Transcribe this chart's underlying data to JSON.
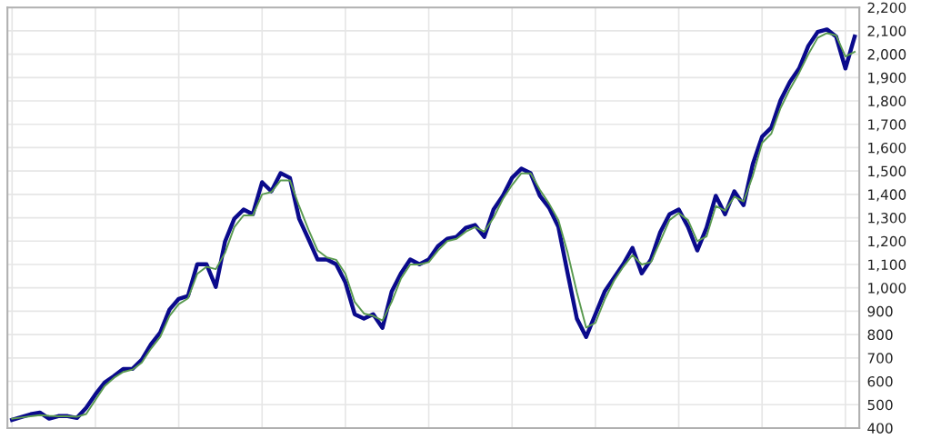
{
  "chart_data": {
    "type": "line",
    "categories": [
      null,
      null,
      null,
      null,
      null,
      null,
      null,
      null,
      null,
      null,
      null,
      null,
      null,
      null,
      null,
      null,
      null,
      null,
      null,
      null,
      null,
      null,
      null,
      null,
      null,
      null,
      null,
      null,
      null,
      null,
      null,
      null,
      null,
      null,
      null,
      null,
      null,
      null,
      null,
      null,
      null,
      null,
      null,
      null,
      null,
      null,
      null,
      null,
      null,
      null,
      null,
      null,
      null,
      null,
      null,
      null,
      null,
      null,
      null,
      null,
      null,
      null,
      null,
      null,
      null,
      null,
      null,
      null,
      null,
      null,
      null,
      null,
      null,
      null,
      null,
      null,
      null,
      null,
      null,
      null,
      null,
      null,
      null,
      null,
      null,
      null,
      null,
      null,
      null,
      null,
      null,
      null
    ],
    "series": [
      {
        "color": "#0a0a8c",
        "values": [
          435,
          447,
          459,
          466,
          440,
          451,
          451,
          443,
          486,
          544,
          595,
          622,
          653,
          653,
          692,
          758,
          809,
          907,
          953,
          965,
          1101,
          1101,
          1004,
          1198,
          1296,
          1335,
          1315,
          1452,
          1413,
          1491,
          1471,
          1296,
          1210,
          1121,
          1121,
          1101,
          1023,
          887,
          868,
          887,
          829,
          984,
          1062,
          1121,
          1101,
          1121,
          1179,
          1210,
          1218,
          1257,
          1269,
          1218,
          1335,
          1394,
          1471,
          1510,
          1491,
          1394,
          1343,
          1261,
          1062,
          868,
          790,
          887,
          984,
          1043,
          1101,
          1171,
          1062,
          1121,
          1238,
          1315,
          1335,
          1261,
          1160,
          1257,
          1394,
          1315,
          1413,
          1354,
          1530,
          1647,
          1686,
          1803,
          1881,
          1939,
          2036,
          2095,
          2106,
          2075,
          1939,
          2075
        ]
      },
      {
        "color": "#5a9a50",
        "values": [
          440,
          445,
          450,
          455,
          452,
          450,
          450,
          448,
          460,
          520,
          580,
          615,
          640,
          650,
          680,
          740,
          790,
          880,
          930,
          955,
          1060,
          1090,
          1080,
          1150,
          1260,
          1310,
          1310,
          1400,
          1410,
          1460,
          1460,
          1350,
          1250,
          1160,
          1130,
          1120,
          1060,
          940,
          890,
          880,
          860,
          940,
          1040,
          1100,
          1100,
          1110,
          1160,
          1200,
          1210,
          1240,
          1260,
          1240,
          1300,
          1380,
          1440,
          1490,
          1490,
          1420,
          1360,
          1290,
          1150,
          980,
          830,
          850,
          950,
          1030,
          1090,
          1140,
          1100,
          1110,
          1200,
          1290,
          1320,
          1290,
          1200,
          1220,
          1350,
          1330,
          1390,
          1370,
          1480,
          1620,
          1660,
          1770,
          1850,
          1920,
          2000,
          2070,
          2090,
          2080,
          1990,
          2010
        ]
      }
    ],
    "ylim": [
      400,
      2200
    ],
    "yticks": [
      {
        "value": 400,
        "label": "400"
      },
      {
        "value": 500,
        "label": "500"
      },
      {
        "value": 600,
        "label": "600"
      },
      {
        "value": 700,
        "label": "700"
      },
      {
        "value": 800,
        "label": "800"
      },
      {
        "value": 900,
        "label": "900"
      },
      {
        "value": 1000,
        "label": "1,000"
      },
      {
        "value": 1100,
        "label": "1,100"
      },
      {
        "value": 1200,
        "label": "1,200"
      },
      {
        "value": 1300,
        "label": "1,300"
      },
      {
        "value": 1400,
        "label": "1,400"
      },
      {
        "value": 1500,
        "label": "1,500"
      },
      {
        "value": 1600,
        "label": "1,600"
      },
      {
        "value": 1700,
        "label": "1,700"
      },
      {
        "value": 1800,
        "label": "1,800"
      },
      {
        "value": 1900,
        "label": "1,900"
      },
      {
        "value": 2000,
        "label": "2,000"
      },
      {
        "value": 2100,
        "label": "2,100"
      },
      {
        "value": 2200,
        "label": "2,200"
      }
    ],
    "grid": true,
    "tick_labels": "y"
  }
}
